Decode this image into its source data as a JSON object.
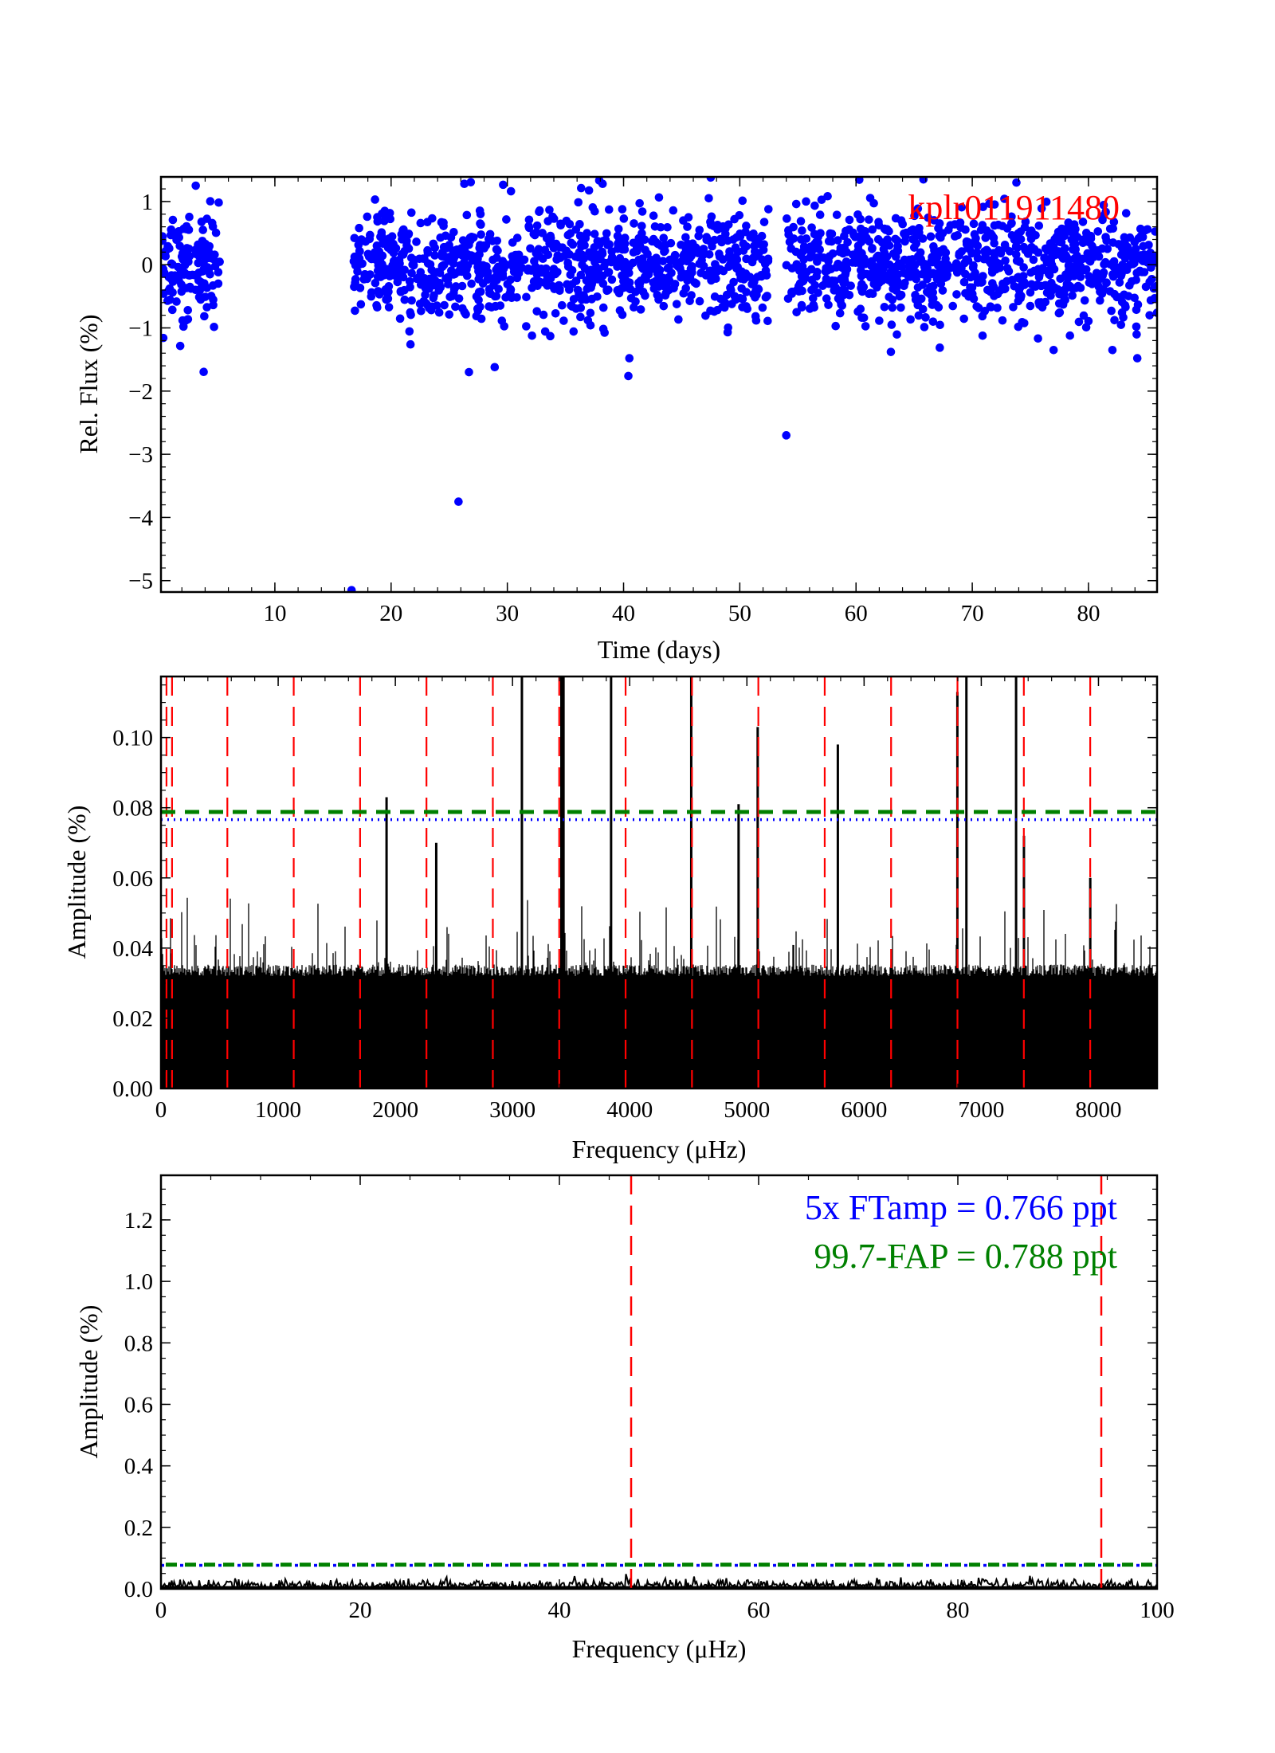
{
  "chart_data": [
    {
      "type": "scatter",
      "title": "",
      "annotation": "kplr011911480",
      "annotation_color": "#ff0000",
      "xlabel": "Time (days)",
      "ylabel": "Rel. Flux (%)",
      "xlim": [
        0.2,
        85.9
      ],
      "ylim": [
        -5.18,
        1.39
      ],
      "xticks": [
        10,
        20,
        30,
        40,
        50,
        60,
        70,
        80
      ],
      "yticks": [
        1,
        0,
        -1,
        -2,
        -3,
        -4,
        -5
      ],
      "ytick_labels": [
        "1",
        "0",
        "−1",
        "−2",
        "−3",
        "−4",
        "−5"
      ],
      "marker_color": "#0000ff",
      "segments": [
        {
          "t_start": 0.3,
          "t_end": 5.3,
          "n_points": 140
        },
        {
          "t_start": 16.6,
          "t_end": 52.5,
          "n_points": 900
        },
        {
          "t_start": 54.0,
          "t_end": 85.9,
          "n_points": 850
        }
      ],
      "scatter_sigma": 0.42,
      "outliers": [
        {
          "x": 16.6,
          "y": -5.15
        },
        {
          "x": 25.8,
          "y": -3.75
        },
        {
          "x": 26.7,
          "y": -1.7
        },
        {
          "x": 54.0,
          "y": -2.7
        },
        {
          "x": 40.5,
          "y": -1.48
        },
        {
          "x": 84.2,
          "y": -1.48
        },
        {
          "x": 63.0,
          "y": -1.38
        },
        {
          "x": 77.0,
          "y": -1.35
        },
        {
          "x": 26.3,
          "y": 1.28
        },
        {
          "x": 47.5,
          "y": 1.38
        },
        {
          "x": 65.8,
          "y": 1.35
        },
        {
          "x": 73.8,
          "y": 1.3
        },
        {
          "x": 38.2,
          "y": 1.28
        }
      ]
    },
    {
      "type": "line",
      "xlabel": "Frequency (μHz)",
      "ylabel": "Amplitude (%)",
      "xlim": [
        0,
        8500
      ],
      "ylim": [
        0,
        0.1174
      ],
      "xticks": [
        0,
        1000,
        2000,
        3000,
        4000,
        5000,
        6000,
        7000,
        8000
      ],
      "yticks": [
        0.0,
        0.02,
        0.04,
        0.06,
        0.08,
        0.1
      ],
      "ytick_labels": [
        "0.00",
        "0.02",
        "0.04",
        "0.06",
        "0.08",
        "0.10"
      ],
      "noise_level": 0.033,
      "noise_max": 0.055,
      "peaks": [
        {
          "freq": 1925,
          "amp": 0.083
        },
        {
          "freq": 2349,
          "amp": 0.07
        },
        {
          "freq": 3080,
          "amp": 0.2
        },
        {
          "freq": 3417,
          "amp": 0.2
        },
        {
          "freq": 3435,
          "amp": 0.2
        },
        {
          "freq": 3841,
          "amp": 0.2
        },
        {
          "freq": 4525,
          "amp": 0.2
        },
        {
          "freq": 4929,
          "amp": 0.081
        },
        {
          "freq": 5092,
          "amp": 0.103
        },
        {
          "freq": 5776,
          "amp": 0.098
        },
        {
          "freq": 6796,
          "amp": 0.113
        },
        {
          "freq": 6873,
          "amp": 0.2
        },
        {
          "freq": 7297,
          "amp": 0.2
        },
        {
          "freq": 7364,
          "amp": 0.072
        },
        {
          "freq": 7930,
          "amp": 0.06
        }
      ],
      "nyquist_lines": [
        47.2,
        94.4,
        566.4,
        1132.8,
        1699.2,
        2265.6,
        2832.0,
        3398.4,
        3964.8,
        4531.2,
        5097.6,
        5664.0,
        6230.4,
        6796.8,
        7363.2,
        7929.6
      ],
      "threshold_ftamp": 0.0766,
      "threshold_fap": 0.0788,
      "colors": {
        "nyquist": "#ff0000",
        "ftamp": "#0000ff",
        "fap": "#008000",
        "spectrum": "#000000"
      }
    },
    {
      "type": "line",
      "xlabel": "Frequency (μHz)",
      "ylabel": "Amplitude (%)",
      "xlim": [
        0,
        100
      ],
      "ylim": [
        0,
        1.345
      ],
      "xticks": [
        0,
        20,
        40,
        60,
        80,
        100
      ],
      "yticks": [
        0.0,
        0.2,
        0.4,
        0.6,
        0.8,
        1.0,
        1.2
      ],
      "ytick_labels": [
        "0.0",
        "0.2",
        "0.4",
        "0.6",
        "0.8",
        "1.0",
        "1.2"
      ],
      "noise_level": 0.02,
      "nyquist_lines": [
        47.2,
        94.4
      ],
      "threshold_ftamp": 0.0766,
      "threshold_fap": 0.0788,
      "legend": [
        {
          "text": "5x FTamp = 0.766 ppt",
          "color": "#0000ff"
        },
        {
          "text": "99.7-FAP = 0.788 ppt",
          "color": "#008000"
        }
      ]
    }
  ]
}
